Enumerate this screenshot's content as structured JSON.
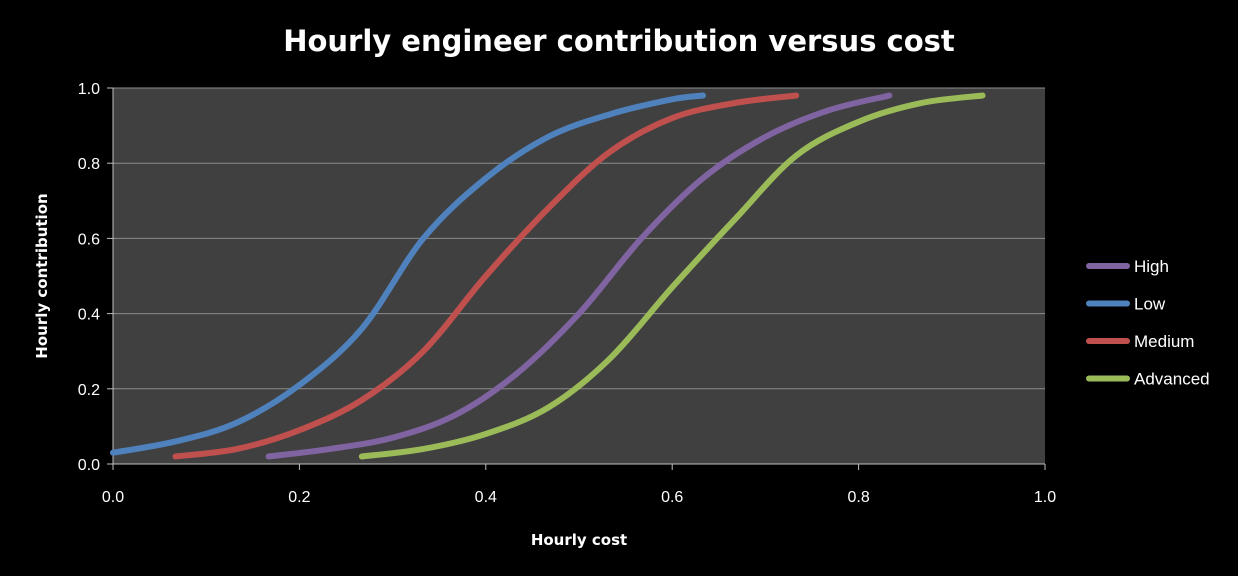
{
  "chart_data": {
    "type": "line",
    "title": "Hourly engineer contribution versus cost",
    "xlabel": "Hourly cost",
    "ylabel": "Hourly contribution",
    "xlim": [
      0,
      1
    ],
    "ylim": [
      0,
      1
    ],
    "x_ticks": [
      "0.0",
      "0.2",
      "0.4",
      "0.6",
      "0.8",
      "1.0"
    ],
    "y_ticks": [
      "0.0",
      "0.2",
      "0.4",
      "0.6",
      "0.8",
      "1.0"
    ],
    "grid": "horizontal",
    "legend_position": "right",
    "background": "#404040",
    "series": [
      {
        "name": "High",
        "color": "#8064A2",
        "points": [
          [
            0.167,
            0.02
          ],
          [
            0.233,
            0.04
          ],
          [
            0.3,
            0.07
          ],
          [
            0.367,
            0.13
          ],
          [
            0.433,
            0.24
          ],
          [
            0.5,
            0.4
          ],
          [
            0.567,
            0.6
          ],
          [
            0.633,
            0.76
          ],
          [
            0.7,
            0.87
          ],
          [
            0.767,
            0.94
          ],
          [
            0.833,
            0.98
          ]
        ]
      },
      {
        "name": "Low",
        "color": "#4F81BD",
        "points": [
          [
            0.0,
            0.03
          ],
          [
            0.067,
            0.06
          ],
          [
            0.133,
            0.11
          ],
          [
            0.2,
            0.21
          ],
          [
            0.267,
            0.36
          ],
          [
            0.333,
            0.6
          ],
          [
            0.4,
            0.76
          ],
          [
            0.467,
            0.87
          ],
          [
            0.533,
            0.93
          ],
          [
            0.6,
            0.97
          ],
          [
            0.633,
            0.98
          ]
        ]
      },
      {
        "name": "Medium",
        "color": "#C0504D",
        "points": [
          [
            0.067,
            0.02
          ],
          [
            0.133,
            0.04
          ],
          [
            0.2,
            0.09
          ],
          [
            0.267,
            0.17
          ],
          [
            0.333,
            0.3
          ],
          [
            0.4,
            0.5
          ],
          [
            0.467,
            0.68
          ],
          [
            0.533,
            0.83
          ],
          [
            0.6,
            0.92
          ],
          [
            0.667,
            0.96
          ],
          [
            0.733,
            0.98
          ]
        ]
      },
      {
        "name": "Advanced",
        "color": "#9BBB59",
        "points": [
          [
            0.267,
            0.02
          ],
          [
            0.333,
            0.04
          ],
          [
            0.4,
            0.08
          ],
          [
            0.467,
            0.15
          ],
          [
            0.533,
            0.28
          ],
          [
            0.6,
            0.47
          ],
          [
            0.667,
            0.65
          ],
          [
            0.733,
            0.82
          ],
          [
            0.8,
            0.91
          ],
          [
            0.867,
            0.96
          ],
          [
            0.933,
            0.98
          ]
        ]
      }
    ]
  }
}
